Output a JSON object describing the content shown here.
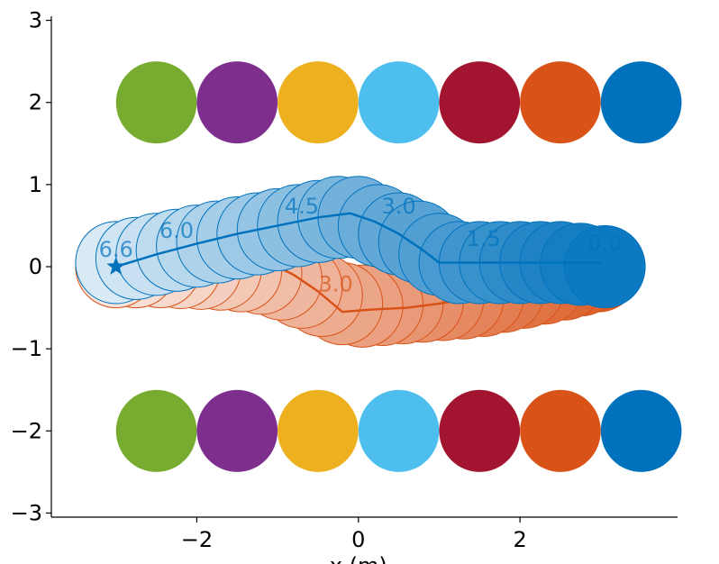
{
  "chart_data": {
    "type": "scatter",
    "title": "",
    "xlabel": "x (m)",
    "ylabel": "",
    "xlim": [
      -3.8,
      3.95
    ],
    "ylim": [
      -3.05,
      3.05
    ],
    "xticks": [
      -2,
      0,
      2
    ],
    "xtick_labels": [
      "−2",
      "0",
      "2"
    ],
    "yticks": [
      -3,
      -2,
      -1,
      0,
      1,
      2,
      3
    ],
    "ytick_labels": [
      "−3",
      "−2",
      "−1",
      "0",
      "1",
      "2",
      "3"
    ],
    "grid": false,
    "static_obstacles": {
      "radius": 0.5,
      "rows": [
        {
          "y": 2,
          "x": [
            -2.5,
            -1.5,
            -0.5,
            0.5,
            1.5,
            2.5,
            3.5
          ]
        },
        {
          "y": -2,
          "x": [
            -2.5,
            -1.5,
            -0.5,
            0.5,
            1.5,
            2.5,
            3.5
          ]
        }
      ],
      "colors": [
        "#77ac30",
        "#7e2f8e",
        "#edb120",
        "#4dbeee",
        "#a2142f",
        "#d95319",
        "#0072bd"
      ]
    },
    "agents": [
      {
        "color": "#d95319",
        "goal_marker": "star",
        "radius": 0.5,
        "path_x": [
          3.0,
          2.6,
          2.2,
          1.8,
          1.4,
          1.0,
          0.6,
          0.2,
          -0.2,
          -0.5,
          -0.8,
          -1.0,
          -1.5,
          -2.0,
          -2.5,
          -2.9
        ],
        "path_y": [
          0.0,
          -0.1,
          -0.2,
          -0.3,
          -0.38,
          -0.45,
          -0.5,
          -0.52,
          -0.55,
          -0.3,
          -0.1,
          0.0,
          0.0,
          0.0,
          0.0,
          0.0
        ],
        "circle_x": [
          2.97,
          2.75,
          2.55,
          2.3,
          2.05,
          1.8,
          1.55,
          1.3,
          1.05,
          0.8,
          0.55,
          0.3,
          0.05,
          -0.2,
          -0.45,
          -0.7,
          -0.95,
          -1.2,
          -1.45,
          -1.7,
          -1.95,
          -2.2,
          -2.45,
          -2.75,
          -3.0
        ],
        "circle_y": [
          -0.05,
          -0.1,
          -0.15,
          -0.2,
          -0.25,
          -0.3,
          -0.35,
          -0.38,
          -0.4,
          -0.42,
          -0.44,
          -0.46,
          -0.48,
          -0.45,
          -0.35,
          -0.25,
          -0.15,
          -0.08,
          -0.05,
          -0.03,
          -0.02,
          -0.01,
          0.0,
          0.0,
          0.0
        ],
        "time_labels": [
          {
            "text": "0.0",
            "x": 2.8,
            "y": 0.1
          },
          {
            "text": "6.0",
            "x": 2.1,
            "y": 0.08
          },
          {
            "text": "4.5",
            "x": 0.9,
            "y": -0.22
          },
          {
            "text": "3.0",
            "x": -0.28,
            "y": -0.3
          },
          {
            "text": "1.5",
            "x": -1.3,
            "y": 0.15
          },
          {
            "text": "6.6",
            "x": -2.75,
            "y": 0.2
          }
        ]
      },
      {
        "color": "#0072bd",
        "goal_marker": "star",
        "radius": 0.5,
        "path_x": [
          -3.0,
          -2.5,
          -2.0,
          -1.5,
          -1.0,
          -0.5,
          -0.1,
          0.2,
          0.5,
          0.8,
          1.0,
          1.5,
          2.0,
          2.5,
          3.0
        ],
        "path_y": [
          0.0,
          0.15,
          0.28,
          0.4,
          0.5,
          0.6,
          0.65,
          0.55,
          0.4,
          0.2,
          0.05,
          0.05,
          0.05,
          0.05,
          0.05
        ],
        "circle_x": [
          -3.0,
          -2.75,
          -2.5,
          -2.25,
          -2.0,
          -1.75,
          -1.5,
          -1.25,
          -1.0,
          -0.75,
          -0.5,
          -0.25,
          0.0,
          0.25,
          0.5,
          0.75,
          1.0,
          1.25,
          1.5,
          1.75,
          2.0,
          2.25,
          2.5,
          2.75,
          3.05
        ],
        "circle_y": [
          0.05,
          0.1,
          0.15,
          0.2,
          0.25,
          0.3,
          0.35,
          0.4,
          0.45,
          0.5,
          0.55,
          0.6,
          0.6,
          0.5,
          0.4,
          0.3,
          0.15,
          0.05,
          0.05,
          0.05,
          0.05,
          0.05,
          0.05,
          0.03,
          0.0
        ],
        "time_labels": [
          {
            "text": "6.6",
            "x": -3.0,
            "y": 0.12
          },
          {
            "text": "6.0",
            "x": -2.25,
            "y": 0.35
          },
          {
            "text": "4.5",
            "x": -0.7,
            "y": 0.65
          },
          {
            "text": "3.0",
            "x": 0.5,
            "y": 0.65
          },
          {
            "text": "1.5",
            "x": 1.55,
            "y": 0.25
          },
          {
            "text": "0.0",
            "x": 3.05,
            "y": 0.2
          }
        ]
      }
    ]
  }
}
